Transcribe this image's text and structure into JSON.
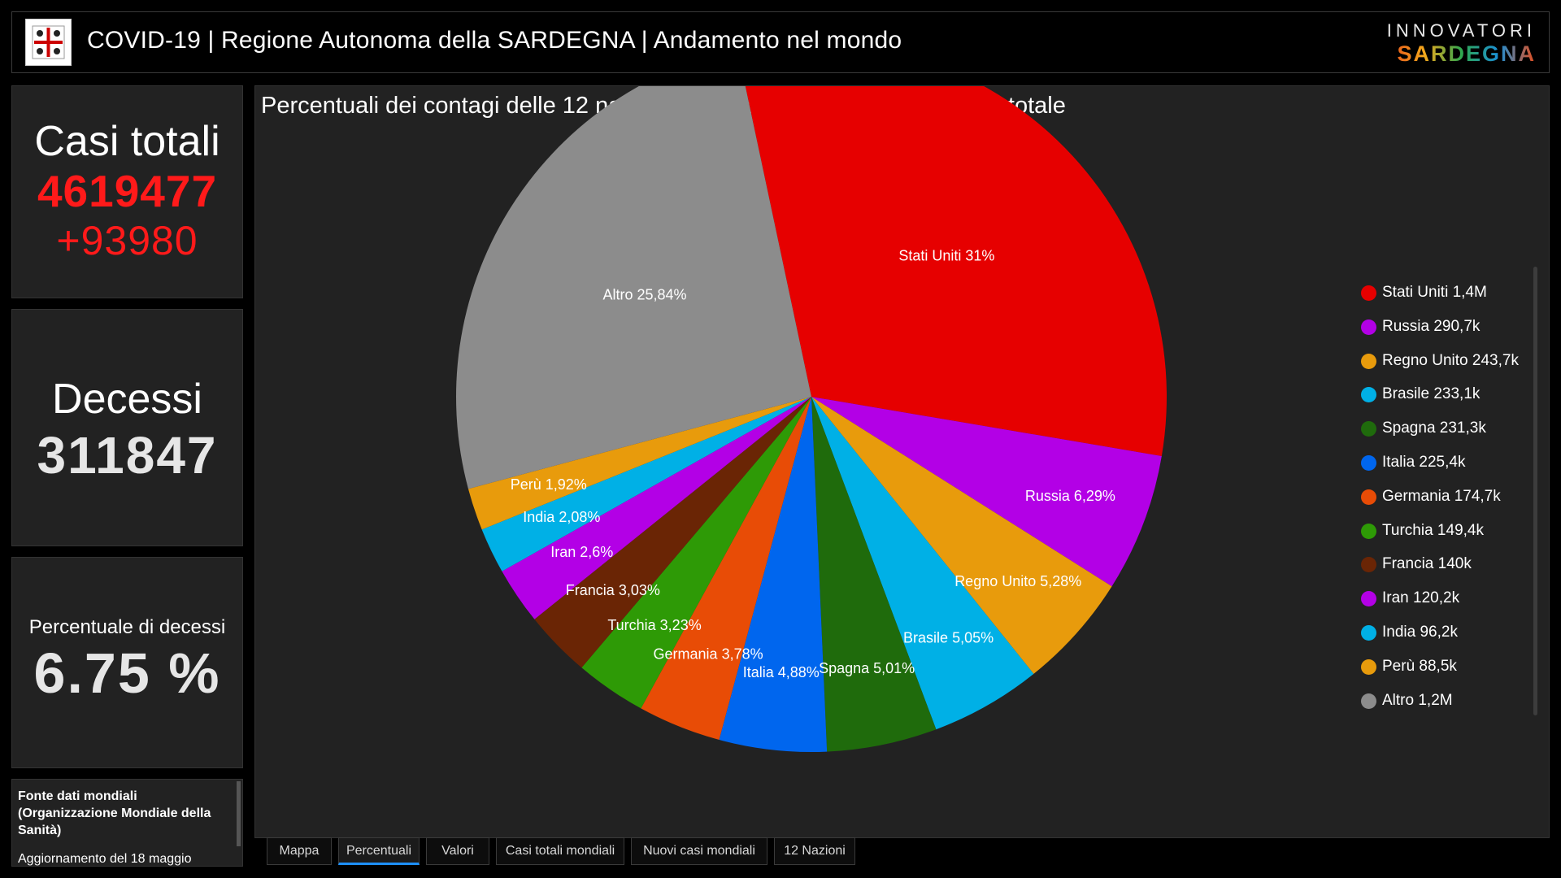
{
  "header": {
    "title": "COVID-19 | Regione Autonoma della SARDEGNA | Andamento nel mondo",
    "brand_top": "INNOVATORI",
    "brand_bottom": "SARDEGNA",
    "logo_icon": "sardinia-coat-of-arms-icon"
  },
  "kpis": {
    "total_cases_label": "Casi totali",
    "total_cases_value": "4619477",
    "total_cases_delta": "+93980",
    "deaths_label": "Decessi",
    "deaths_value": "311847",
    "death_rate_label": "Percentuale di decessi",
    "death_rate_value": "6.75 %"
  },
  "source": {
    "title": "Fonte dati mondiali (Organizzazione Mondiale della Sanità)",
    "update": "Aggiornamento del 18 maggio"
  },
  "main": {
    "title": "Percentuali dei contagi delle 12 nazioni più colpite al mondo, rispetto al totale"
  },
  "chart_data": {
    "type": "pie",
    "title": "Percentuali dei contagi delle 12 nazioni più colpite al mondo, rispetto al totale",
    "legend_position": "right",
    "slices": [
      {
        "name": "Stati Uniti",
        "percent": 31.0,
        "pct_label": "Stati Uniti 31%",
        "legend_label": "Stati Uniti 1,4M",
        "color": "#e60000"
      },
      {
        "name": "Russia",
        "percent": 6.29,
        "pct_label": "Russia 6,29%",
        "legend_label": "Russia 290,7k",
        "color": "#b300e6"
      },
      {
        "name": "Regno Unito",
        "percent": 5.28,
        "pct_label": "Regno Unito 5,28%",
        "legend_label": "Regno Unito 243,7k",
        "color": "#e89b0c"
      },
      {
        "name": "Brasile",
        "percent": 5.05,
        "pct_label": "Brasile 5,05%",
        "legend_label": "Brasile 233,1k",
        "color": "#00b0e6"
      },
      {
        "name": "Spagna",
        "percent": 5.01,
        "pct_label": "Spagna 5,01%",
        "legend_label": "Spagna 231,3k",
        "color": "#1f6b0c"
      },
      {
        "name": "Italia",
        "percent": 4.88,
        "pct_label": "Italia 4,88%",
        "legend_label": "Italia 225,4k",
        "color": "#0066ee"
      },
      {
        "name": "Germania",
        "percent": 3.78,
        "pct_label": "Germania 3,78%",
        "legend_label": "Germania 174,7k",
        "color": "#e84c06"
      },
      {
        "name": "Turchia",
        "percent": 3.23,
        "pct_label": "Turchia 3,23%",
        "legend_label": "Turchia 149,4k",
        "color": "#2e9a06"
      },
      {
        "name": "Francia",
        "percent": 3.03,
        "pct_label": "Francia 3,03%",
        "legend_label": "Francia 140k",
        "color": "#6a2505"
      },
      {
        "name": "Iran",
        "percent": 2.6,
        "pct_label": "Iran 2,6%",
        "legend_label": "Iran 120,2k",
        "color": "#b300e6"
      },
      {
        "name": "India",
        "percent": 2.08,
        "pct_label": "India 2,08%",
        "legend_label": "India 96,2k",
        "color": "#00b0e6"
      },
      {
        "name": "Perù",
        "percent": 1.92,
        "pct_label": "Perù 1,92%",
        "legend_label": "Perù 88,5k",
        "color": "#e89b0c"
      },
      {
        "name": "Altro",
        "percent": 25.84,
        "pct_label": "Altro 25,84%",
        "legend_label": "Altro 1,2M",
        "color": "#8c8c8c"
      }
    ]
  },
  "tabs": [
    {
      "label": "Mappa",
      "active": false
    },
    {
      "label": "Percentuali",
      "active": true
    },
    {
      "label": "Valori",
      "active": false
    },
    {
      "label": "Casi totali mondiali",
      "active": false
    },
    {
      "label": "Nuovi casi mondiali",
      "active": false
    },
    {
      "label": "12 Nazioni",
      "active": false
    }
  ]
}
